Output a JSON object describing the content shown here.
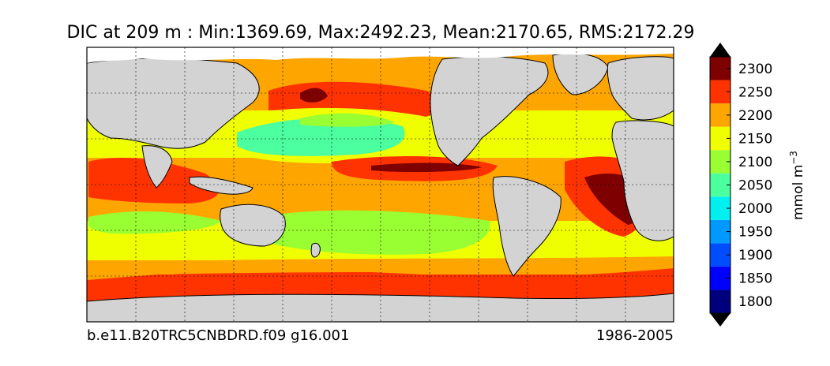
{
  "figure": {
    "title": "DIC at 209 m : Min:1369.69, Max:2492.23, Mean:2170.65, RMS:2172.29",
    "case_name": "b.e11.B20TRC5CNBDRD.f09 g16.001",
    "period": "1986-2005"
  },
  "colorbar": {
    "label": "mmol m",
    "label_exponent": "−3",
    "ticks": [
      "1800",
      "1850",
      "1900",
      "1950",
      "2000",
      "2050",
      "2100",
      "2150",
      "2200",
      "2250",
      "2300"
    ],
    "under_color": "#000000",
    "over_color": "#000000",
    "bins": [
      {
        "lo": 1775,
        "hi": 1825,
        "color": "#00007f"
      },
      {
        "lo": 1825,
        "hi": 1875,
        "color": "#0000ff"
      },
      {
        "lo": 1875,
        "hi": 1925,
        "color": "#004cff"
      },
      {
        "lo": 1925,
        "hi": 1975,
        "color": "#0099ff"
      },
      {
        "lo": 1975,
        "hi": 2025,
        "color": "#00f0f0"
      },
      {
        "lo": 2025,
        "hi": 2075,
        "color": "#4cff9f"
      },
      {
        "lo": 2075,
        "hi": 2125,
        "color": "#99ff33"
      },
      {
        "lo": 2125,
        "hi": 2175,
        "color": "#f0ff00"
      },
      {
        "lo": 2175,
        "hi": 2225,
        "color": "#ffa500"
      },
      {
        "lo": 2225,
        "hi": 2275,
        "color": "#ff3300"
      },
      {
        "lo": 2275,
        "hi": 2325,
        "color": "#7f0000"
      }
    ]
  },
  "map_colors": {
    "land": "#d3d3d3",
    "ice_missing": "#ffffff"
  }
}
